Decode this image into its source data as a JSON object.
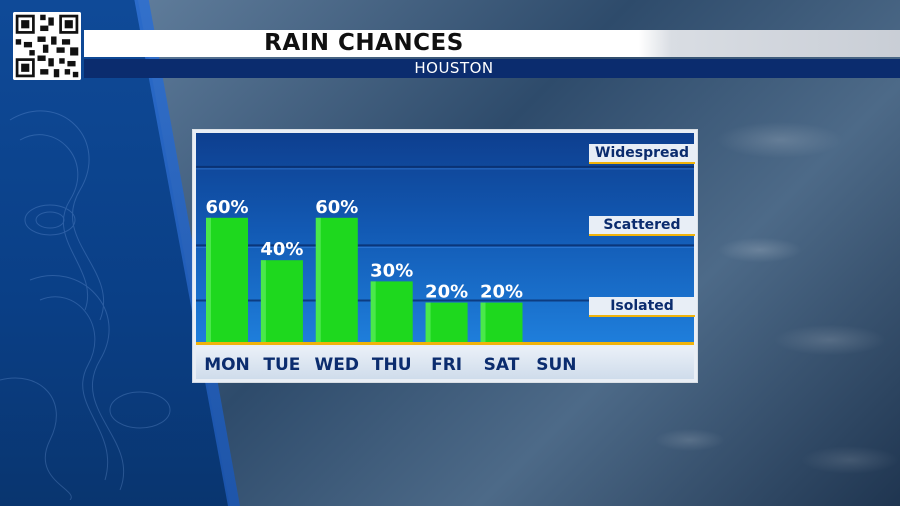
{
  "header": {
    "title": "RAIN CHANCES",
    "subtitle": "HOUSTON"
  },
  "chart_data": {
    "type": "bar",
    "title": "RAIN CHANCES",
    "subtitle": "HOUSTON",
    "categories": [
      "MON",
      "TUE",
      "WED",
      "THU",
      "FRI",
      "SAT",
      "SUN"
    ],
    "values": [
      60,
      40,
      60,
      30,
      20,
      20,
      null
    ],
    "value_labels": [
      "60%",
      "40%",
      "60%",
      "30%",
      "20%",
      "20%",
      ""
    ],
    "ylim": [
      0,
      100
    ],
    "grid": true,
    "legend_placement": "right",
    "levels": [
      {
        "label": "Widespread",
        "value": 90
      },
      {
        "label": "Scattered",
        "value": 56
      },
      {
        "label": "Isolated",
        "value": 18
      }
    ],
    "colors": {
      "bar": "#1ed81e",
      "baseline": "#f0b30b",
      "label_text": "#ffffff",
      "day_text": "#0b2c6e"
    }
  },
  "icons": {
    "qr": "qr-code-icon"
  }
}
